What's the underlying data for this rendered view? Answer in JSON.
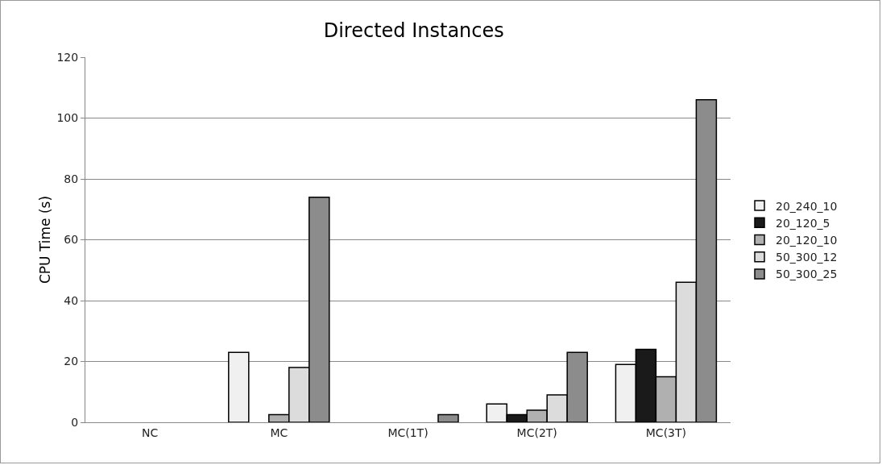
{
  "chart_data": {
    "type": "bar",
    "title": "Directed Instances",
    "ylabel": "CPU Time (s)",
    "categories": [
      "NC",
      "MC",
      "MC(1T)",
      "MC(2T)",
      "MC(3T)"
    ],
    "series": [
      {
        "name": "20_240_10",
        "color": "#f0f0f0",
        "values": [
          null,
          23,
          null,
          6,
          19
        ]
      },
      {
        "name": "20_120_5",
        "color": "#1a1a1a",
        "values": [
          null,
          null,
          null,
          2.5,
          24
        ]
      },
      {
        "name": "20_120_10",
        "color": "#b0b0b0",
        "values": [
          null,
          2.5,
          null,
          4,
          15
        ]
      },
      {
        "name": "50_300_12",
        "color": "#dcdcdc",
        "values": [
          null,
          18,
          null,
          9,
          46
        ]
      },
      {
        "name": "50_300_25",
        "color": "#8c8c8c",
        "values": [
          null,
          74,
          2.5,
          23,
          106
        ]
      }
    ],
    "ylim": [
      0,
      120
    ],
    "yticks": [
      0,
      20,
      40,
      60,
      80,
      100,
      120
    ],
    "grid": "y",
    "legend": "right"
  }
}
